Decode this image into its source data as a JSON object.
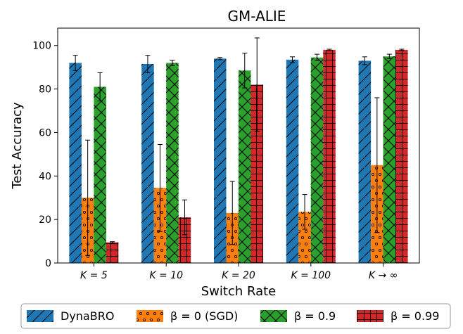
{
  "chart_data": {
    "type": "bar",
    "title": "GM-ALIE",
    "xlabel": "Switch Rate",
    "ylabel": "Test Accuracy",
    "ylim": [
      0,
      108
    ],
    "yticks": [
      0,
      20,
      40,
      60,
      80,
      100
    ],
    "categories": [
      "K = 5",
      "K = 10",
      "K = 20",
      "K = 100",
      "K → ∞"
    ],
    "series": [
      {
        "name": "DynaBRO",
        "color": "#1f77b4",
        "hatch": "diag",
        "values": [
          92,
          91.5,
          94,
          93.5,
          93
        ],
        "err": [
          3.5,
          4,
          0.5,
          1.3,
          1.8
        ]
      },
      {
        "name": "β = 0 (SGD)",
        "color": "#ff7f0e",
        "hatch": "dots",
        "values": [
          30,
          34.5,
          23,
          23.5,
          45
        ],
        "err": [
          26.5,
          20,
          14.5,
          8,
          31
        ]
      },
      {
        "name": "β = 0.9",
        "color": "#2ca02c",
        "hatch": "cross",
        "values": [
          81,
          92,
          88.5,
          94.5,
          95
        ],
        "err": [
          6.5,
          1.2,
          8,
          1.5,
          1
        ]
      },
      {
        "name": "β = 0.99",
        "color": "#d62728",
        "hatch": "grid",
        "values": [
          9.5,
          21,
          82,
          98,
          98
        ],
        "err": [
          0.3,
          8,
          21.5,
          0.3,
          0.3
        ]
      }
    ],
    "legend": "bottom, outside plot"
  }
}
